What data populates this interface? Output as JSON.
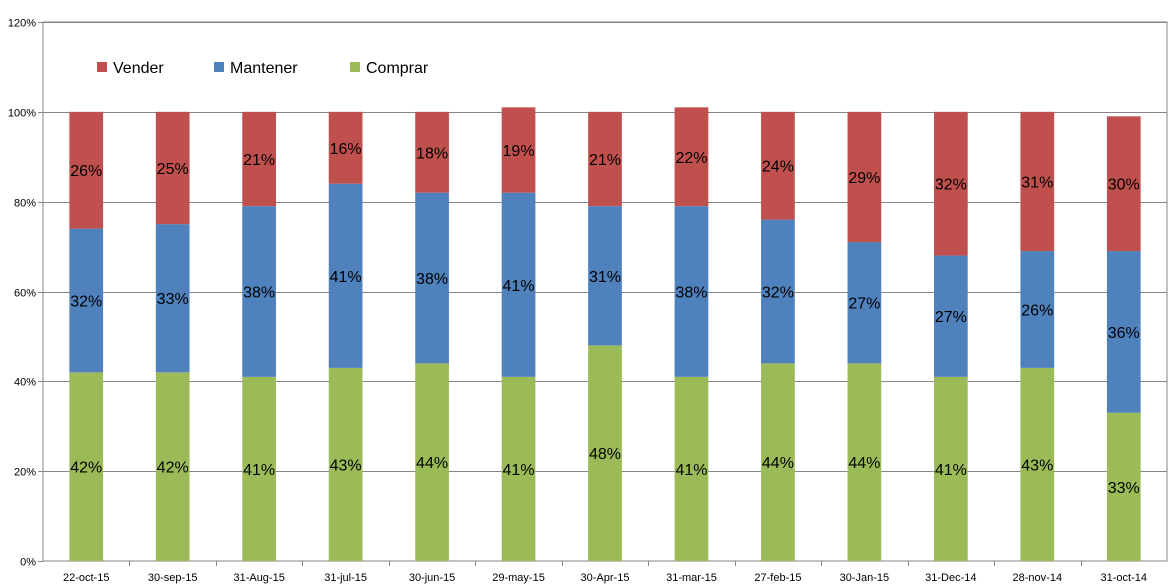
{
  "chart_data": {
    "type": "bar",
    "stacked": true,
    "categories": [
      "22-oct-15",
      "30-sep-15",
      "31-Aug-15",
      "31-jul-15",
      "30-jun-15",
      "29-may-15",
      "30-Apr-15",
      "31-mar-15",
      "27-feb-15",
      "30-Jan-15",
      "31-Dec-14",
      "28-nov-14",
      "31-oct-14"
    ],
    "series": [
      {
        "name": "Comprar",
        "color": "#9BBB59",
        "values": [
          42,
          42,
          41,
          43,
          44,
          41,
          48,
          41,
          44,
          44,
          41,
          43,
          33
        ],
        "labels": [
          "42%",
          "42%",
          "41%",
          "43%",
          "44%",
          "41%",
          "48%",
          "41%",
          "44%",
          "44%",
          "41%",
          "43%",
          "33%"
        ]
      },
      {
        "name": "Mantener",
        "color": "#4F81BD",
        "values": [
          32,
          33,
          38,
          41,
          38,
          41,
          31,
          38,
          32,
          27,
          27,
          26,
          36
        ],
        "labels": [
          "32%",
          "33%",
          "38%",
          "41%",
          "38%",
          "41%",
          "31%",
          "38%",
          "32%",
          "27%",
          "27%",
          "26%",
          "36%"
        ]
      },
      {
        "name": "Vender",
        "color": "#C0504D",
        "values": [
          26,
          25,
          21,
          16,
          18,
          19,
          21,
          22,
          24,
          29,
          32,
          31,
          30
        ],
        "labels": [
          "26%",
          "25%",
          "21%",
          "16%",
          "18%",
          "19%",
          "21%",
          "22%",
          "24%",
          "29%",
          "32%",
          "31%",
          "30%"
        ]
      }
    ],
    "legend": {
      "position": "top-left",
      "order": [
        "Vender",
        "Mantener",
        "Comprar"
      ]
    },
    "ylim": [
      0,
      120
    ],
    "yticks": [
      "0%",
      "20%",
      "40%",
      "60%",
      "80%",
      "100%",
      "120%"
    ],
    "grid": true
  }
}
